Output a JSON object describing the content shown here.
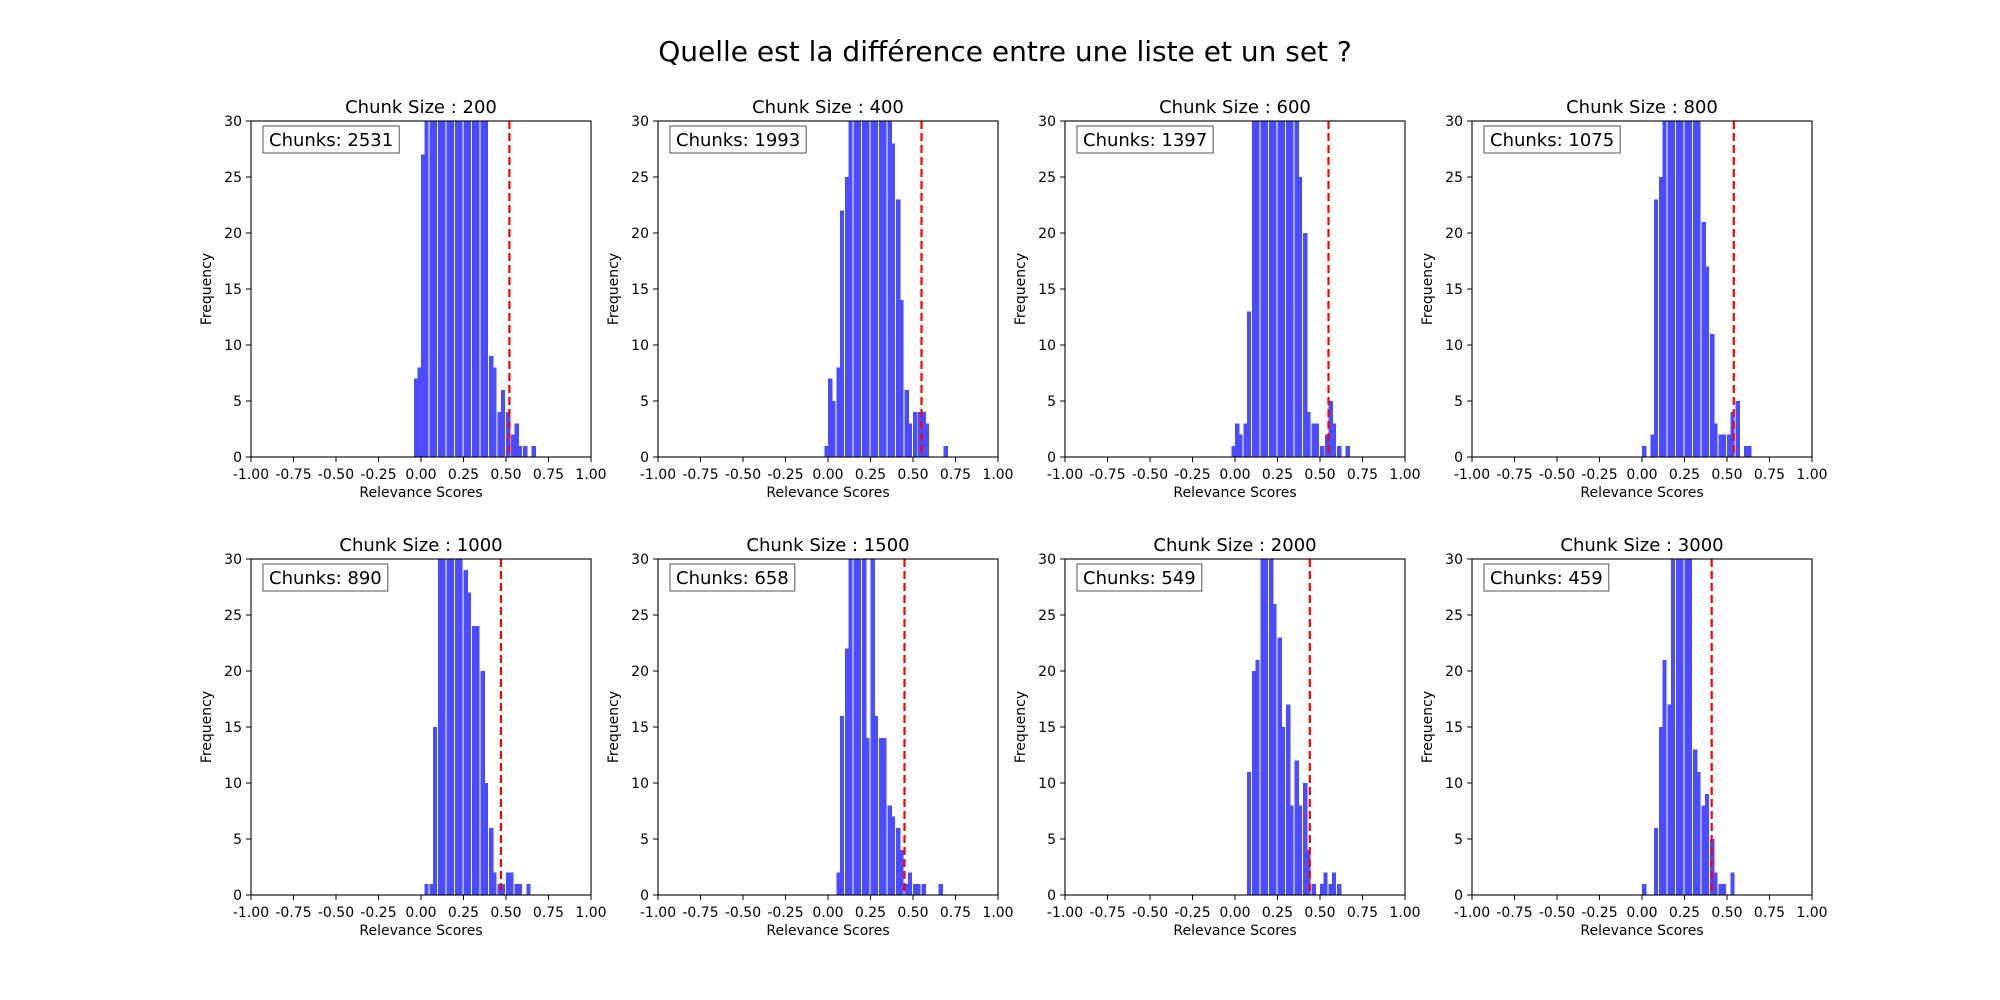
{
  "figure": {
    "title": "Quelle est la différence entre une liste et un set ?"
  },
  "colors": {
    "bars": "#4b4bff",
    "threshold": "#ff0000",
    "axis": "#000000",
    "background": "#ffffff"
  },
  "chart_data": [
    {
      "type": "bar",
      "title": "Chunk Size : 200",
      "xlabel": "Relevance Scores",
      "ylabel": "Frequency",
      "xlim": [
        -1.0,
        1.0
      ],
      "ylim": [
        0,
        30
      ],
      "xticks": [
        "-1.00",
        "-0.75",
        "-0.50",
        "-0.25",
        "0.00",
        "0.25",
        "0.50",
        "0.75",
        "1.00"
      ],
      "yticks": [
        "0",
        "5",
        "10",
        "15",
        "20",
        "25",
        "30"
      ],
      "annotation": "Chunks: 2531",
      "threshold": 0.52,
      "bin_width": 0.025,
      "bins": [
        [
          -0.04,
          7
        ],
        [
          -0.02,
          8
        ],
        [
          0.0,
          27
        ],
        [
          0.02,
          30
        ],
        [
          0.05,
          30
        ],
        [
          0.07,
          30
        ],
        [
          0.1,
          30
        ],
        [
          0.12,
          30
        ],
        [
          0.15,
          30
        ],
        [
          0.17,
          30
        ],
        [
          0.2,
          30
        ],
        [
          0.22,
          30
        ],
        [
          0.25,
          30
        ],
        [
          0.27,
          30
        ],
        [
          0.3,
          30
        ],
        [
          0.32,
          30
        ],
        [
          0.35,
          30
        ],
        [
          0.37,
          30
        ],
        [
          0.4,
          9
        ],
        [
          0.42,
          8
        ],
        [
          0.45,
          4
        ],
        [
          0.47,
          6
        ],
        [
          0.5,
          4
        ],
        [
          0.53,
          2
        ],
        [
          0.55,
          3
        ],
        [
          0.57,
          1
        ],
        [
          0.6,
          1
        ],
        [
          0.65,
          1
        ]
      ]
    },
    {
      "type": "bar",
      "title": "Chunk Size : 400",
      "xlabel": "Relevance Scores",
      "ylabel": "Frequency",
      "xlim": [
        -1.0,
        1.0
      ],
      "ylim": [
        0,
        30
      ],
      "xticks": [
        "-1.00",
        "-0.75",
        "-0.50",
        "-0.25",
        "0.00",
        "0.25",
        "0.50",
        "0.75",
        "1.00"
      ],
      "yticks": [
        "0",
        "5",
        "10",
        "15",
        "20",
        "25",
        "30"
      ],
      "annotation": "Chunks: 1993",
      "threshold": 0.55,
      "bin_width": 0.025,
      "bins": [
        [
          -0.02,
          1
        ],
        [
          0.0,
          7
        ],
        [
          0.02,
          5
        ],
        [
          0.05,
          8
        ],
        [
          0.07,
          22
        ],
        [
          0.1,
          25
        ],
        [
          0.12,
          30
        ],
        [
          0.15,
          30
        ],
        [
          0.17,
          30
        ],
        [
          0.2,
          30
        ],
        [
          0.22,
          30
        ],
        [
          0.25,
          30
        ],
        [
          0.27,
          30
        ],
        [
          0.3,
          30
        ],
        [
          0.32,
          30
        ],
        [
          0.35,
          30
        ],
        [
          0.37,
          28
        ],
        [
          0.4,
          23
        ],
        [
          0.42,
          14
        ],
        [
          0.45,
          6
        ],
        [
          0.47,
          3
        ],
        [
          0.5,
          4
        ],
        [
          0.53,
          4
        ],
        [
          0.55,
          4
        ],
        [
          0.57,
          3
        ],
        [
          0.68,
          1
        ]
      ]
    },
    {
      "type": "bar",
      "title": "Chunk Size : 600",
      "xlabel": "Relevance Scores",
      "ylabel": "Frequency",
      "xlim": [
        -1.0,
        1.0
      ],
      "ylim": [
        0,
        30
      ],
      "xticks": [
        "-1.00",
        "-0.75",
        "-0.50",
        "-0.25",
        "0.00",
        "0.25",
        "0.50",
        "0.75",
        "1.00"
      ],
      "yticks": [
        "0",
        "5",
        "10",
        "15",
        "20",
        "25",
        "30"
      ],
      "annotation": "Chunks: 1397",
      "threshold": 0.55,
      "bin_width": 0.025,
      "bins": [
        [
          -0.02,
          1
        ],
        [
          0.0,
          3
        ],
        [
          0.02,
          2
        ],
        [
          0.05,
          3
        ],
        [
          0.07,
          13
        ],
        [
          0.1,
          30
        ],
        [
          0.12,
          30
        ],
        [
          0.15,
          30
        ],
        [
          0.17,
          30
        ],
        [
          0.2,
          30
        ],
        [
          0.22,
          30
        ],
        [
          0.25,
          30
        ],
        [
          0.27,
          30
        ],
        [
          0.3,
          30
        ],
        [
          0.32,
          30
        ],
        [
          0.35,
          30
        ],
        [
          0.37,
          25
        ],
        [
          0.4,
          20
        ],
        [
          0.42,
          4
        ],
        [
          0.45,
          3
        ],
        [
          0.47,
          3
        ],
        [
          0.5,
          1
        ],
        [
          0.53,
          2
        ],
        [
          0.55,
          5
        ],
        [
          0.57,
          3
        ],
        [
          0.6,
          1
        ],
        [
          0.65,
          1
        ]
      ]
    },
    {
      "type": "bar",
      "title": "Chunk Size : 800",
      "xlabel": "Relevance Scores",
      "ylabel": "Frequency",
      "xlim": [
        -1.0,
        1.0
      ],
      "ylim": [
        0,
        30
      ],
      "xticks": [
        "-1.00",
        "-0.75",
        "-0.50",
        "-0.25",
        "0.00",
        "0.25",
        "0.50",
        "0.75",
        "1.00"
      ],
      "yticks": [
        "0",
        "5",
        "10",
        "15",
        "20",
        "25",
        "30"
      ],
      "annotation": "Chunks: 1075",
      "threshold": 0.54,
      "bin_width": 0.025,
      "bins": [
        [
          0.0,
          1
        ],
        [
          0.05,
          2
        ],
        [
          0.07,
          23
        ],
        [
          0.1,
          25
        ],
        [
          0.12,
          30
        ],
        [
          0.15,
          30
        ],
        [
          0.17,
          30
        ],
        [
          0.2,
          30
        ],
        [
          0.22,
          30
        ],
        [
          0.25,
          30
        ],
        [
          0.27,
          30
        ],
        [
          0.3,
          30
        ],
        [
          0.32,
          30
        ],
        [
          0.35,
          21
        ],
        [
          0.37,
          17
        ],
        [
          0.4,
          11
        ],
        [
          0.42,
          3
        ],
        [
          0.45,
          2
        ],
        [
          0.47,
          2
        ],
        [
          0.5,
          2
        ],
        [
          0.52,
          4
        ],
        [
          0.55,
          5
        ],
        [
          0.6,
          1
        ],
        [
          0.62,
          1
        ]
      ]
    },
    {
      "type": "bar",
      "title": "Chunk Size : 1000",
      "xlabel": "Relevance Scores",
      "ylabel": "Frequency",
      "xlim": [
        -1.0,
        1.0
      ],
      "ylim": [
        0,
        30
      ],
      "xticks": [
        "-1.00",
        "-0.75",
        "-0.50",
        "-0.25",
        "0.00",
        "0.25",
        "0.50",
        "0.75",
        "1.00"
      ],
      "yticks": [
        "0",
        "5",
        "10",
        "15",
        "20",
        "25",
        "30"
      ],
      "annotation": "Chunks: 890",
      "threshold": 0.47,
      "bin_width": 0.025,
      "bins": [
        [
          0.02,
          1
        ],
        [
          0.05,
          1
        ],
        [
          0.07,
          15
        ],
        [
          0.1,
          30
        ],
        [
          0.12,
          30
        ],
        [
          0.15,
          30
        ],
        [
          0.17,
          30
        ],
        [
          0.2,
          30
        ],
        [
          0.22,
          30
        ],
        [
          0.25,
          29
        ],
        [
          0.27,
          27
        ],
        [
          0.3,
          24
        ],
        [
          0.32,
          24
        ],
        [
          0.35,
          20
        ],
        [
          0.37,
          10
        ],
        [
          0.4,
          6
        ],
        [
          0.42,
          2
        ],
        [
          0.45,
          1
        ],
        [
          0.47,
          1
        ],
        [
          0.5,
          2
        ],
        [
          0.52,
          2
        ],
        [
          0.55,
          1
        ],
        [
          0.57,
          1
        ],
        [
          0.62,
          1
        ]
      ]
    },
    {
      "type": "bar",
      "title": "Chunk Size : 1500",
      "xlabel": "Relevance Scores",
      "ylabel": "Frequency",
      "xlim": [
        -1.0,
        1.0
      ],
      "ylim": [
        0,
        30
      ],
      "xticks": [
        "-1.00",
        "-0.75",
        "-0.50",
        "-0.25",
        "0.00",
        "0.25",
        "0.50",
        "0.75",
        "1.00"
      ],
      "yticks": [
        "0",
        "5",
        "10",
        "15",
        "20",
        "25",
        "30"
      ],
      "annotation": "Chunks: 658",
      "threshold": 0.45,
      "bin_width": 0.025,
      "bins": [
        [
          0.05,
          2
        ],
        [
          0.07,
          16
        ],
        [
          0.1,
          22
        ],
        [
          0.12,
          30
        ],
        [
          0.15,
          30
        ],
        [
          0.17,
          30
        ],
        [
          0.2,
          30
        ],
        [
          0.22,
          14
        ],
        [
          0.25,
          30
        ],
        [
          0.27,
          16
        ],
        [
          0.3,
          14
        ],
        [
          0.32,
          14
        ],
        [
          0.35,
          8
        ],
        [
          0.37,
          7
        ],
        [
          0.4,
          6
        ],
        [
          0.42,
          4
        ],
        [
          0.45,
          1
        ],
        [
          0.47,
          2
        ],
        [
          0.5,
          1
        ],
        [
          0.52,
          1
        ],
        [
          0.55,
          1
        ],
        [
          0.65,
          1
        ]
      ]
    },
    {
      "type": "bar",
      "title": "Chunk Size : 2000",
      "xlabel": "Relevance Scores",
      "ylabel": "Frequency",
      "xlim": [
        -1.0,
        1.0
      ],
      "ylim": [
        0,
        30
      ],
      "xticks": [
        "-1.00",
        "-0.75",
        "-0.50",
        "-0.25",
        "0.00",
        "0.25",
        "0.50",
        "0.75",
        "1.00"
      ],
      "yticks": [
        "0",
        "5",
        "10",
        "15",
        "20",
        "25",
        "30"
      ],
      "annotation": "Chunks: 549",
      "threshold": 0.44,
      "bin_width": 0.025,
      "bins": [
        [
          0.07,
          11
        ],
        [
          0.1,
          20
        ],
        [
          0.12,
          21
        ],
        [
          0.15,
          30
        ],
        [
          0.17,
          30
        ],
        [
          0.2,
          30
        ],
        [
          0.22,
          26
        ],
        [
          0.25,
          23
        ],
        [
          0.27,
          15
        ],
        [
          0.3,
          17
        ],
        [
          0.32,
          8
        ],
        [
          0.35,
          12
        ],
        [
          0.37,
          8
        ],
        [
          0.4,
          10
        ],
        [
          0.42,
          4
        ],
        [
          0.45,
          1
        ],
        [
          0.5,
          1
        ],
        [
          0.52,
          2
        ],
        [
          0.55,
          1
        ],
        [
          0.57,
          2
        ],
        [
          0.6,
          1
        ]
      ]
    },
    {
      "type": "bar",
      "title": "Chunk Size : 3000",
      "xlabel": "Relevance Scores",
      "ylabel": "Frequency",
      "xlim": [
        -1.0,
        1.0
      ],
      "ylim": [
        0,
        30
      ],
      "xticks": [
        "-1.00",
        "-0.75",
        "-0.50",
        "-0.25",
        "0.00",
        "0.25",
        "0.50",
        "0.75",
        "1.00"
      ],
      "yticks": [
        "0",
        "5",
        "10",
        "15",
        "20",
        "25",
        "30"
      ],
      "annotation": "Chunks: 459",
      "threshold": 0.41,
      "bin_width": 0.025,
      "bins": [
        [
          0.0,
          1
        ],
        [
          0.07,
          6
        ],
        [
          0.1,
          15
        ],
        [
          0.12,
          21
        ],
        [
          0.15,
          17
        ],
        [
          0.17,
          30
        ],
        [
          0.2,
          30
        ],
        [
          0.22,
          30
        ],
        [
          0.25,
          30
        ],
        [
          0.27,
          30
        ],
        [
          0.3,
          13
        ],
        [
          0.32,
          11
        ],
        [
          0.35,
          8
        ],
        [
          0.37,
          9
        ],
        [
          0.4,
          5
        ],
        [
          0.42,
          2
        ],
        [
          0.45,
          1
        ],
        [
          0.47,
          1
        ],
        [
          0.52,
          2
        ]
      ]
    }
  ]
}
